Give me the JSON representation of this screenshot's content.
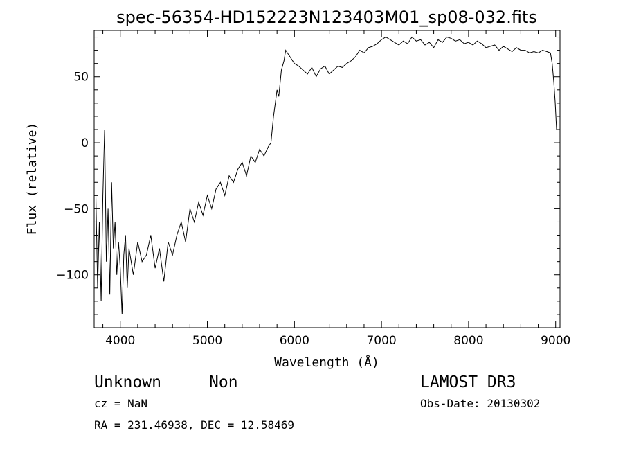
{
  "chart_data": {
    "type": "line",
    "title": "spec-56354-HD152223N123403M01_sp08-032.fits",
    "xlabel": "Wavelength (Å)",
    "ylabel": "Flux (relative)",
    "xlim": [
      3700,
      9050
    ],
    "ylim": [
      -140,
      85
    ],
    "x_ticks": [
      4000,
      5000,
      6000,
      7000,
      8000,
      9000
    ],
    "y_ticks": [
      -100,
      -50,
      0,
      50
    ],
    "line_color": "#000000",
    "grid": false,
    "series": [
      {
        "x": [
          3720,
          3740,
          3760,
          3780,
          3800,
          3820,
          3840,
          3860,
          3880,
          3900,
          3920,
          3940,
          3960,
          3980,
          4000,
          4020,
          4040,
          4060,
          4080,
          4100,
          4150,
          4200,
          4250,
          4300,
          4350,
          4400,
          4450,
          4500,
          4550,
          4600,
          4650,
          4700,
          4750,
          4800,
          4850,
          4900,
          4950,
          5000,
          5050,
          5100,
          5150,
          5200,
          5250,
          5300,
          5350,
          5400,
          5450,
          5500,
          5550,
          5600,
          5650,
          5700,
          5730,
          5760,
          5780,
          5800,
          5820,
          5850,
          5880,
          5900,
          5950,
          6000,
          6050,
          6100,
          6150,
          6200,
          6250,
          6300,
          6350,
          6400,
          6450,
          6500,
          6550,
          6600,
          6650,
          6700,
          6750,
          6800,
          6850,
          6900,
          6950,
          7000,
          7050,
          7100,
          7150,
          7200,
          7250,
          7300,
          7350,
          7400,
          7450,
          7500,
          7550,
          7600,
          7650,
          7700,
          7750,
          7800,
          7850,
          7900,
          7950,
          8000,
          8050,
          8100,
          8150,
          8200,
          8250,
          8300,
          8350,
          8400,
          8450,
          8500,
          8550,
          8600,
          8650,
          8700,
          8750,
          8800,
          8850,
          8900,
          8940,
          8960,
          8980,
          8995,
          9010
        ],
        "y": [
          -40,
          -110,
          -60,
          -120,
          -40,
          10,
          -90,
          -50,
          -115,
          -30,
          -80,
          -60,
          -100,
          -75,
          -95,
          -130,
          -85,
          -70,
          -110,
          -80,
          -100,
          -75,
          -90,
          -85,
          -70,
          -95,
          -80,
          -105,
          -75,
          -85,
          -70,
          -60,
          -75,
          -50,
          -60,
          -45,
          -55,
          -40,
          -50,
          -35,
          -30,
          -40,
          -25,
          -30,
          -20,
          -15,
          -25,
          -10,
          -15,
          -5,
          -10,
          -3,
          0,
          20,
          30,
          40,
          35,
          55,
          62,
          70,
          65,
          60,
          58,
          55,
          52,
          57,
          50,
          56,
          58,
          52,
          55,
          58,
          57,
          60,
          62,
          65,
          70,
          68,
          72,
          73,
          75,
          78,
          80,
          78,
          76,
          74,
          77,
          75,
          80,
          77,
          78,
          74,
          76,
          72,
          78,
          76,
          80,
          79,
          77,
          78,
          75,
          76,
          74,
          77,
          75,
          72,
          73,
          74,
          70,
          73,
          71,
          69,
          72,
          70,
          70,
          68,
          69,
          68,
          70,
          69,
          68,
          60,
          45,
          30,
          10
        ]
      }
    ]
  },
  "annotations": {
    "object_class": "Unknown",
    "object_subclass": "Non",
    "survey": "LAMOST DR3",
    "cz": "cz = NaN",
    "obs_date": "Obs-Date: 20130302",
    "coords": "RA = 231.46938, DEC =  12.58469"
  }
}
